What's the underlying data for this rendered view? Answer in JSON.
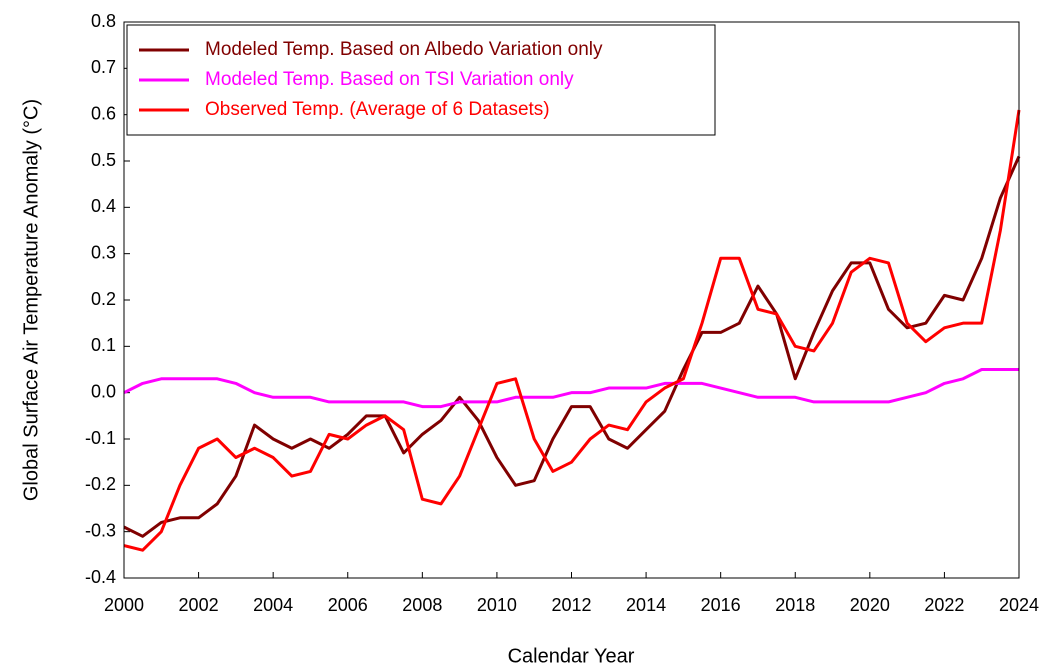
{
  "chart_data": {
    "type": "line",
    "x_label": "Calendar Year",
    "y_label": "Global Surface Air Temperature Anomaly (°C)",
    "xlim": [
      2000,
      2024
    ],
    "xticks": [
      2000,
      2002,
      2004,
      2006,
      2008,
      2010,
      2012,
      2014,
      2016,
      2018,
      2020,
      2022,
      2024
    ],
    "ylim": [
      -0.4,
      0.8
    ],
    "yticks": [
      -0.4,
      -0.3,
      -0.2,
      -0.1,
      {
        "value": 0,
        "label": "0.0"
      },
      0.1,
      0.2,
      0.3,
      0.4,
      0.5,
      0.6,
      0.7,
      0.8
    ],
    "grid": false,
    "legend_position": "upper-left",
    "x": [
      2000,
      2000.5,
      2001,
      2001.5,
      2002,
      2002.5,
      2003,
      2003.5,
      2004,
      2004.5,
      2005,
      2005.5,
      2006,
      2006.5,
      2007,
      2007.5,
      2008,
      2008.5,
      2009,
      2009.5,
      2010,
      2010.5,
      2011,
      2011.5,
      2012,
      2012.5,
      2013,
      2013.5,
      2014,
      2014.5,
      2015,
      2015.5,
      2016,
      2016.5,
      2017,
      2017.5,
      2018,
      2018.5,
      2019,
      2019.5,
      2020,
      2020.5,
      2021,
      2021.5,
      2022,
      2022.5,
      2023,
      2023.5,
      2024
    ],
    "series": [
      {
        "name": "Modeled Temp. Based on Albedo Variation only",
        "color": "#800000",
        "values": [
          -0.29,
          -0.31,
          -0.28,
          -0.27,
          -0.27,
          -0.24,
          -0.18,
          -0.07,
          -0.1,
          -0.12,
          -0.1,
          -0.12,
          -0.09,
          -0.05,
          -0.05,
          -0.13,
          -0.09,
          -0.06,
          -0.01,
          -0.06,
          -0.14,
          -0.2,
          -0.19,
          -0.1,
          -0.03,
          -0.03,
          -0.1,
          -0.12,
          -0.08,
          -0.04,
          0.05,
          0.13,
          0.13,
          0.15,
          0.23,
          0.17,
          0.03,
          0.13,
          0.22,
          0.28,
          0.28,
          0.18,
          0.14,
          0.15,
          0.21,
          0.2,
          0.29,
          0.42,
          0.51
        ]
      },
      {
        "name": "Modeled Temp. Based on TSI Variation only",
        "color": "#ff00ff",
        "values": [
          0.0,
          0.02,
          0.03,
          0.03,
          0.03,
          0.03,
          0.02,
          0.0,
          -0.01,
          -0.01,
          -0.01,
          -0.02,
          -0.02,
          -0.02,
          -0.02,
          -0.02,
          -0.03,
          -0.03,
          -0.02,
          -0.02,
          -0.02,
          -0.01,
          -0.01,
          -0.01,
          0.0,
          0.0,
          0.01,
          0.01,
          0.01,
          0.02,
          0.02,
          0.02,
          0.01,
          0.0,
          -0.01,
          -0.01,
          -0.01,
          -0.02,
          -0.02,
          -0.02,
          -0.02,
          -0.02,
          -0.01,
          0.0,
          0.02,
          0.03,
          0.05,
          0.05,
          0.05
        ]
      },
      {
        "name": "Observed Temp. (Average of 6 Datasets)",
        "color": "#ff0000",
        "values": [
          -0.33,
          -0.34,
          -0.3,
          -0.2,
          -0.12,
          -0.1,
          -0.14,
          -0.12,
          -0.14,
          -0.18,
          -0.17,
          -0.09,
          -0.1,
          -0.07,
          -0.05,
          -0.08,
          -0.23,
          -0.24,
          -0.18,
          -0.08,
          0.02,
          0.03,
          -0.1,
          -0.17,
          -0.15,
          -0.1,
          -0.07,
          -0.08,
          -0.02,
          0.01,
          0.03,
          0.15,
          0.29,
          0.29,
          0.18,
          0.17,
          0.1,
          0.09,
          0.15,
          0.26,
          0.29,
          0.28,
          0.15,
          0.11,
          0.14,
          0.15,
          0.15,
          0.35,
          0.61
        ]
      }
    ]
  }
}
